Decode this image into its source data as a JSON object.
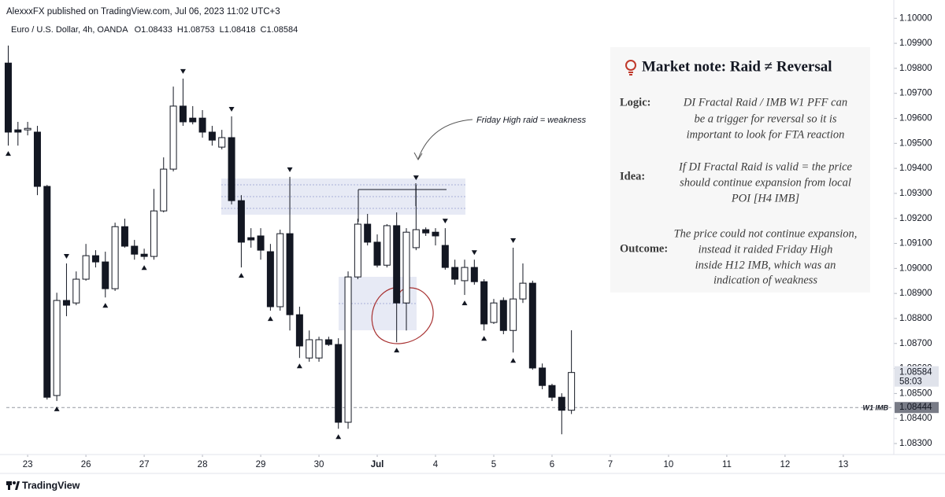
{
  "header": {
    "publisher": "AlexxxFX published on TradingView.com, Jul 06, 2023 11:02 UTC+3",
    "symbol": "Euro / U.S. Dollar, 4h, OANDA",
    "ohlc_labels": [
      "O",
      "H",
      "L",
      "C"
    ]
  },
  "chart_data": {
    "type": "candlestick",
    "candles": {
      "open": [
        1.09821,
        1.09554,
        1.09554,
        1.09545,
        1.09328,
        1.08492,
        1.08872,
        1.08862,
        1.08957,
        1.09051,
        1.09026,
        1.08919,
        1.09167,
        1.09089,
        1.09057,
        1.09048,
        1.0923,
        1.09397,
        1.09649,
        1.09601,
        1.09601,
        1.09545,
        1.09485,
        1.09523,
        1.09271,
        1.09123,
        1.0913,
        1.09067,
        1.08847,
        1.09139,
        1.08815,
        1.08642,
        1.08642,
        1.08715,
        1.08696,
        1.08385,
        1.08966,
        1.09177,
        1.09105,
        1.09013,
        1.09171,
        1.08862,
        1.09083,
        1.09155,
        1.09145,
        1.09092,
        1.09004,
        1.08951,
        1.09004,
        1.08947,
        1.08784,
        1.08872,
        1.08752,
        1.08878,
        1.08941,
        1.08602,
        1.08532,
        1.08485,
        1.08433
      ],
      "high": [
        1.09891,
        1.09586,
        1.09586,
        1.0957,
        1.09334,
        1.08903,
        1.0902,
        1.08988,
        1.09098,
        1.09073,
        1.09067,
        1.09183,
        1.09199,
        1.09114,
        1.09079,
        1.09318,
        1.09444,
        1.09727,
        1.09759,
        1.09649,
        1.09633,
        1.0957,
        1.09554,
        1.09608,
        1.09293,
        1.09161,
        1.09161,
        1.09098,
        1.09155,
        1.09366,
        1.08847,
        1.08752,
        1.08727,
        1.08727,
        1.08721,
        1.08988,
        1.09199,
        1.09218,
        1.09136,
        1.09177,
        1.09224,
        1.09161,
        1.09334,
        1.09164,
        1.09161,
        1.09161,
        1.09035,
        1.09035,
        1.09035,
        1.08957,
        1.08878,
        1.08884,
        1.09083,
        1.0902,
        1.08951,
        1.0862,
        1.08539,
        1.08501,
        1.08753
      ],
      "low": [
        1.09491,
        1.09491,
        1.09532,
        1.09293,
        1.08476,
        1.0847,
        1.08809,
        1.08853,
        1.08951,
        1.09004,
        1.08884,
        1.0891,
        1.09083,
        1.09035,
        1.09035,
        1.09035,
        1.09224,
        1.09388,
        1.0957,
        1.09576,
        1.09523,
        1.09491,
        1.09476,
        1.09256,
        1.09004,
        1.09083,
        1.09035,
        1.08831,
        1.08831,
        1.08752,
        1.08642,
        1.08627,
        1.08627,
        1.0869,
        1.08359,
        1.08359,
        1.08957,
        1.09092,
        1.09004,
        1.09004,
        1.08705,
        1.08752,
        1.09073,
        1.0913,
        1.09092,
        1.08995,
        1.08935,
        1.08894,
        1.08935,
        1.08752,
        1.08778,
        1.08737,
        1.08664,
        1.08862,
        1.08595,
        1.08517,
        1.0847,
        1.08337,
        1.08418
      ],
      "close": [
        1.09545,
        1.09545,
        1.0956,
        1.09328,
        1.08485,
        1.08872,
        1.08853,
        1.08957,
        1.09051,
        1.09026,
        1.08919,
        1.09167,
        1.09089,
        1.09057,
        1.09048,
        1.0923,
        1.09397,
        1.09649,
        1.09586,
        1.09586,
        1.09545,
        1.09513,
        1.09523,
        1.09271,
        1.09105,
        1.09114,
        1.09073,
        1.08847,
        1.09139,
        1.08815,
        1.0869,
        1.08715,
        1.08715,
        1.08696,
        1.08385,
        1.08966,
        1.09177,
        1.09105,
        1.09013,
        1.09171,
        1.08862,
        1.09145,
        1.09155,
        1.09142,
        1.0913,
        1.09004,
        1.08957,
        1.09004,
        1.08947,
        1.08778,
        1.08862,
        1.08752,
        1.08878,
        1.08941,
        1.08602,
        1.08532,
        1.08485,
        1.08433,
        1.08584
      ]
    },
    "up_color": "#ffffff",
    "down_color": "#131722",
    "xlim": [
      -0.2,
      91.2
    ],
    "xticks": [
      {
        "value": 2,
        "label": "23"
      },
      {
        "value": 8,
        "label": "26"
      },
      {
        "value": 14,
        "label": "27"
      },
      {
        "value": 20,
        "label": "28"
      },
      {
        "value": 26,
        "label": "29"
      },
      {
        "value": 32,
        "label": "30"
      },
      {
        "value": 38,
        "label": "Jul"
      },
      {
        "value": 44,
        "label": "4"
      },
      {
        "value": 50,
        "label": "5"
      },
      {
        "value": 56,
        "label": "6"
      },
      {
        "value": 62,
        "label": "7"
      },
      {
        "value": 68,
        "label": "10"
      },
      {
        "value": 74,
        "label": "11"
      },
      {
        "value": 80,
        "label": "12"
      },
      {
        "value": 86,
        "label": "13"
      }
    ],
    "ylim": [
      1.08256,
      1.10026
    ],
    "yticks": [
      {
        "value": 1.083,
        "label": "1.08300"
      },
      {
        "value": 1.084,
        "label": "1.08400"
      },
      {
        "value": 1.085,
        "label": "1.08500"
      },
      {
        "value": 1.086,
        "label": "1.08600"
      },
      {
        "value": 1.087,
        "label": "1.08700"
      },
      {
        "value": 1.088,
        "label": "1.08800"
      },
      {
        "value": 1.089,
        "label": "1.08900"
      },
      {
        "value": 1.09,
        "label": "1.09000"
      },
      {
        "value": 1.091,
        "label": "1.09100"
      },
      {
        "value": 1.092,
        "label": "1.09200"
      },
      {
        "value": 1.093,
        "label": "1.09300"
      },
      {
        "value": 1.094,
        "label": "1.09400"
      },
      {
        "value": 1.095,
        "label": "1.09500"
      },
      {
        "value": 1.096,
        "label": "1.09600"
      },
      {
        "value": 1.097,
        "label": "1.09700"
      },
      {
        "value": 1.098,
        "label": "1.09800"
      },
      {
        "value": 1.099,
        "label": "1.09900"
      },
      {
        "value": 1.1,
        "label": "1.10000"
      }
    ],
    "fractal_highs": [
      6,
      18,
      23,
      29,
      42,
      45,
      48,
      52
    ],
    "fractal_lows": [
      0,
      5,
      10,
      14,
      24,
      27,
      30,
      34,
      40,
      47,
      49,
      52
    ],
    "last_price_countdown": "58:03",
    "level": {
      "label": "W1 IMB",
      "value": 1.08444
    },
    "annotation": "Friday High raid = weakness"
  },
  "note": {
    "title": "Market note: Raid ≠ Reversal",
    "sections": [
      {
        "label": "Logic:",
        "lines": [
          "DI Fractal Raid / IMB W1 PFF can",
          "be a trigger for reversal so it is",
          "important to look for FTA reaction"
        ]
      },
      {
        "label": "Idea:",
        "lines": [
          "If DI Fractal Raid is valid = the price",
          "should continue expansion from local",
          "POI [H4 IMB]"
        ]
      },
      {
        "label": "Outcome:",
        "lines": [
          "The price could not continue expansion,",
          "instead it raided Friday High",
          "inside H12 IMB, which was an",
          "indication of weakness"
        ]
      }
    ]
  },
  "footer": {
    "brand": "TradingView"
  }
}
